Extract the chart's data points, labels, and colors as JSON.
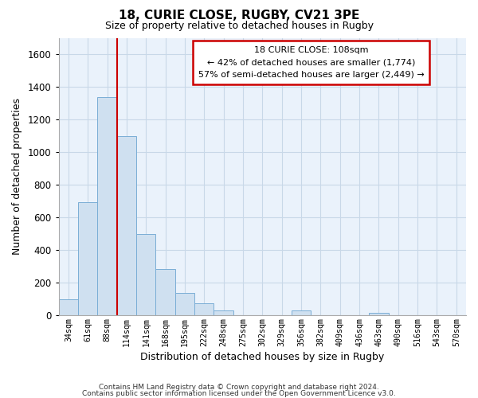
{
  "title": "18, CURIE CLOSE, RUGBY, CV21 3PE",
  "subtitle": "Size of property relative to detached houses in Rugby",
  "xlabel": "Distribution of detached houses by size in Rugby",
  "ylabel": "Number of detached properties",
  "bar_color": "#cfe0f0",
  "bar_edge_color": "#7aaed6",
  "categories": [
    "34sqm",
    "61sqm",
    "88sqm",
    "114sqm",
    "141sqm",
    "168sqm",
    "195sqm",
    "222sqm",
    "248sqm",
    "275sqm",
    "302sqm",
    "329sqm",
    "356sqm",
    "382sqm",
    "409sqm",
    "436sqm",
    "463sqm",
    "490sqm",
    "516sqm",
    "543sqm",
    "570sqm"
  ],
  "values": [
    100,
    695,
    1335,
    1100,
    500,
    285,
    140,
    75,
    30,
    0,
    0,
    0,
    30,
    0,
    0,
    0,
    15,
    0,
    0,
    0,
    0
  ],
  "ylim": [
    0,
    1700
  ],
  "yticks": [
    0,
    200,
    400,
    600,
    800,
    1000,
    1200,
    1400,
    1600
  ],
  "vline_x": 3.0,
  "vline_color": "#cc0000",
  "annotation_title": "18 CURIE CLOSE: 108sqm",
  "annotation_line1": "← 42% of detached houses are smaller (1,774)",
  "annotation_line2": "57% of semi-detached houses are larger (2,449) →",
  "annotation_box_color": "#ffffff",
  "annotation_box_edge": "#cc0000",
  "footer1": "Contains HM Land Registry data © Crown copyright and database right 2024.",
  "footer2": "Contains public sector information licensed under the Open Government Licence v3.0.",
  "background_color": "#ffffff",
  "grid_color": "#c8d8e8"
}
